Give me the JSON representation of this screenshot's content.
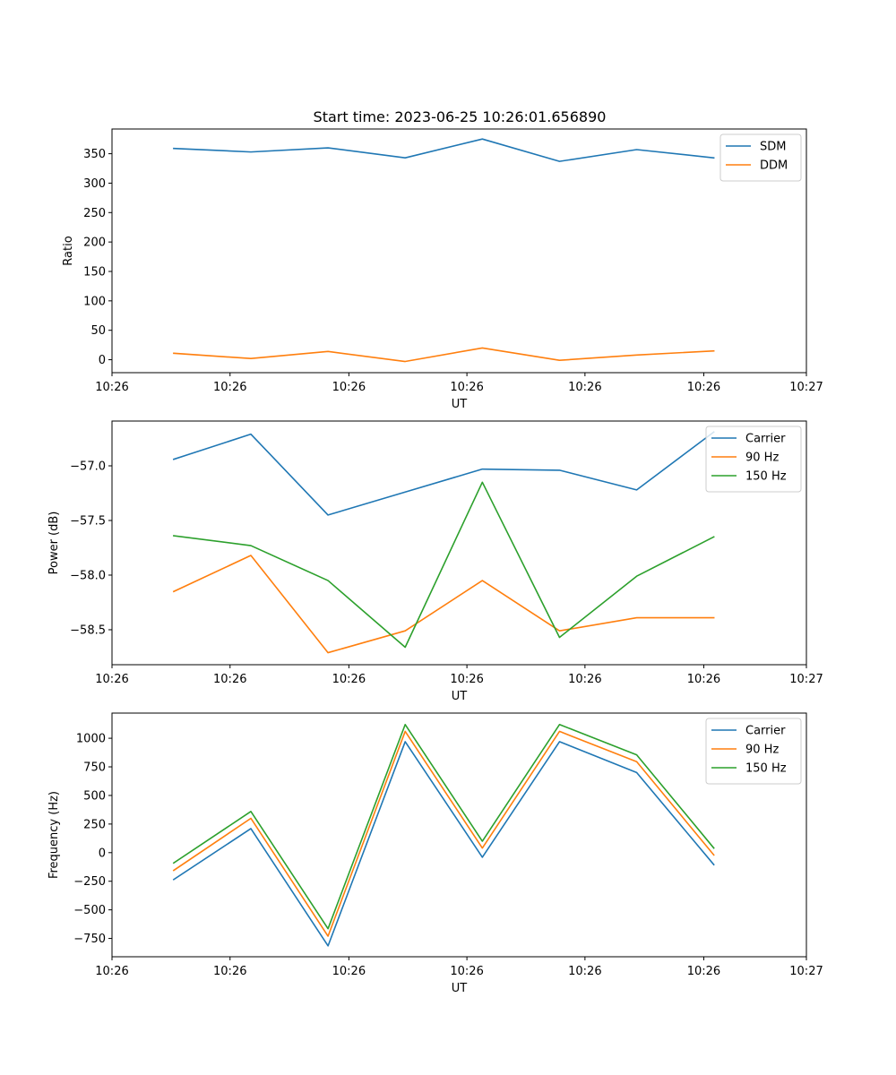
{
  "figure": {
    "title": "Start time: 2023-06-25 10:26:01.656890"
  },
  "chart_data": [
    {
      "type": "line",
      "title": "Start time: 2023-06-25 10:26:01.656890",
      "xlabel": "UT",
      "ylabel": "Ratio",
      "x": [
        1,
        2,
        3,
        4,
        5,
        6,
        7,
        8
      ],
      "xlim": [
        0.2,
        9.2
      ],
      "ylim": [
        -22,
        392
      ],
      "yticks": [
        0,
        50,
        100,
        150,
        200,
        250,
        300,
        350
      ],
      "yticklabels": [
        "0",
        "50",
        "100",
        "150",
        "200",
        "250",
        "300",
        "350"
      ],
      "xticks": [
        0.2,
        1.73,
        3.27,
        4.8,
        6.33,
        7.87,
        9.2
      ],
      "xticklabels": [
        "10:26",
        "10:26",
        "10:26",
        "10:26",
        "10:26",
        "10:26",
        "10:27"
      ],
      "legend_position": "top-right",
      "series": [
        {
          "name": "SDM",
          "color": "#1f77b4",
          "values": [
            359,
            353,
            360,
            343,
            375,
            337,
            357,
            343
          ]
        },
        {
          "name": "DDM",
          "color": "#ff7f0e",
          "values": [
            11,
            2,
            14,
            -3,
            20,
            -1,
            8,
            15
          ]
        }
      ]
    },
    {
      "type": "line",
      "title": "",
      "xlabel": "UT",
      "ylabel": "Power (dB)",
      "x": [
        1,
        2,
        3,
        4,
        5,
        6,
        7,
        8
      ],
      "xlim": [
        0.2,
        9.2
      ],
      "ylim": [
        -58.82,
        -56.59
      ],
      "yticks": [
        -57.0,
        -57.5,
        -58.0,
        -58.5
      ],
      "yticklabels": [
        "−57.0",
        "−57.5",
        "−58.0",
        "−58.5"
      ],
      "xticks": [
        0.2,
        1.73,
        3.27,
        4.8,
        6.33,
        7.87,
        9.2
      ],
      "xticklabels": [
        "10:26",
        "10:26",
        "10:26",
        "10:26",
        "10:26",
        "10:26",
        "10:27"
      ],
      "legend_position": "top-right",
      "series": [
        {
          "name": "Carrier",
          "color": "#1f77b4",
          "values": [
            -56.94,
            -56.71,
            -57.45,
            -57.24,
            -57.03,
            -57.04,
            -57.22,
            -56.69
          ]
        },
        {
          "name": "90 Hz",
          "color": "#ff7f0e",
          "values": [
            -58.15,
            -57.82,
            -58.71,
            -58.51,
            -58.05,
            -58.51,
            -58.39,
            -58.39
          ]
        },
        {
          "name": "150 Hz",
          "color": "#2ca02c",
          "values": [
            -57.64,
            -57.73,
            -58.05,
            -58.66,
            -57.15,
            -58.57,
            -58.01,
            -57.65
          ]
        }
      ]
    },
    {
      "type": "line",
      "title": "",
      "xlabel": "UT",
      "ylabel": "Frequency (Hz)",
      "x": [
        1,
        2,
        3,
        4,
        5,
        6,
        7,
        8
      ],
      "xlim": [
        0.2,
        9.2
      ],
      "ylim": [
        -910,
        1220
      ],
      "yticks": [
        1000,
        750,
        500,
        250,
        0,
        -250,
        -500,
        -750
      ],
      "yticklabels": [
        "1000",
        "750",
        "500",
        "250",
        "0",
        "−250",
        "−500",
        "−750"
      ],
      "xticks": [
        0.2,
        1.73,
        3.27,
        4.8,
        6.33,
        7.87,
        9.2
      ],
      "xticklabels": [
        "10:26",
        "10:26",
        "10:26",
        "10:26",
        "10:26",
        "10:26",
        "10:27"
      ],
      "legend_position": "top-right",
      "series": [
        {
          "name": "Carrier",
          "color": "#1f77b4",
          "values": [
            -235,
            210,
            -815,
            970,
            -40,
            970,
            700,
            -105
          ]
        },
        {
          "name": "90 Hz",
          "color": "#ff7f0e",
          "values": [
            -155,
            300,
            -730,
            1060,
            40,
            1060,
            795,
            -20
          ]
        },
        {
          "name": "150 Hz",
          "color": "#2ca02c",
          "values": [
            -90,
            360,
            -665,
            1120,
            100,
            1120,
            855,
            40
          ]
        }
      ]
    }
  ]
}
